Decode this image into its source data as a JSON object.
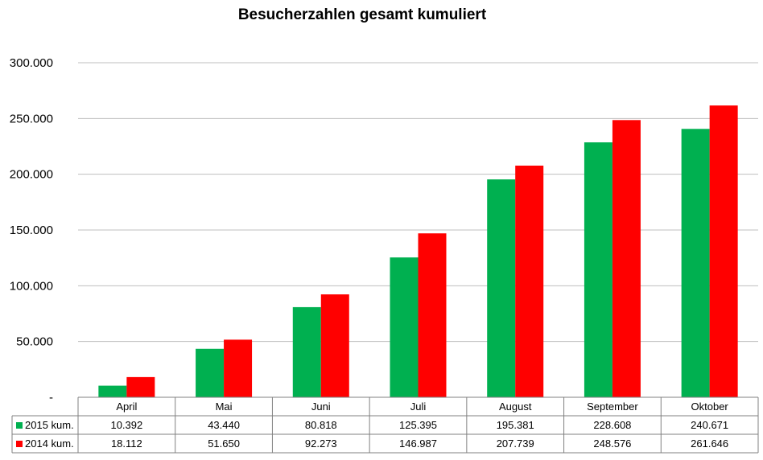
{
  "chart_data": {
    "type": "bar",
    "title": "Besucherzahlen gesamt kumuliert",
    "categories": [
      "April",
      "Mai",
      "Juni",
      "Juli",
      "August",
      "September",
      "Oktober"
    ],
    "series": [
      {
        "name": "2015 kum.",
        "color": "#00b050",
        "values": [
          10392,
          43440,
          80818,
          125395,
          195381,
          228608,
          240671
        ],
        "labels": [
          "10.392",
          "43.440",
          "80.818",
          "125.395",
          "195.381",
          "228.608",
          "240.671"
        ]
      },
      {
        "name": "2014 kum.",
        "color": "#ff0000",
        "values": [
          18112,
          51650,
          92273,
          146987,
          207739,
          248576,
          261646
        ],
        "labels": [
          "18.112",
          "51.650",
          "92.273",
          "146.987",
          "207.739",
          "248.576",
          "261.646"
        ]
      }
    ],
    "ylim": [
      0,
      300000
    ],
    "yticks": [
      0,
      50000,
      100000,
      150000,
      200000,
      250000,
      300000
    ],
    "ytick_labels": [
      "-",
      "50.000",
      "100.000",
      "150.000",
      "200.000",
      "250.000",
      "300.000"
    ],
    "grid": true,
    "legend": "data-table-below"
  }
}
